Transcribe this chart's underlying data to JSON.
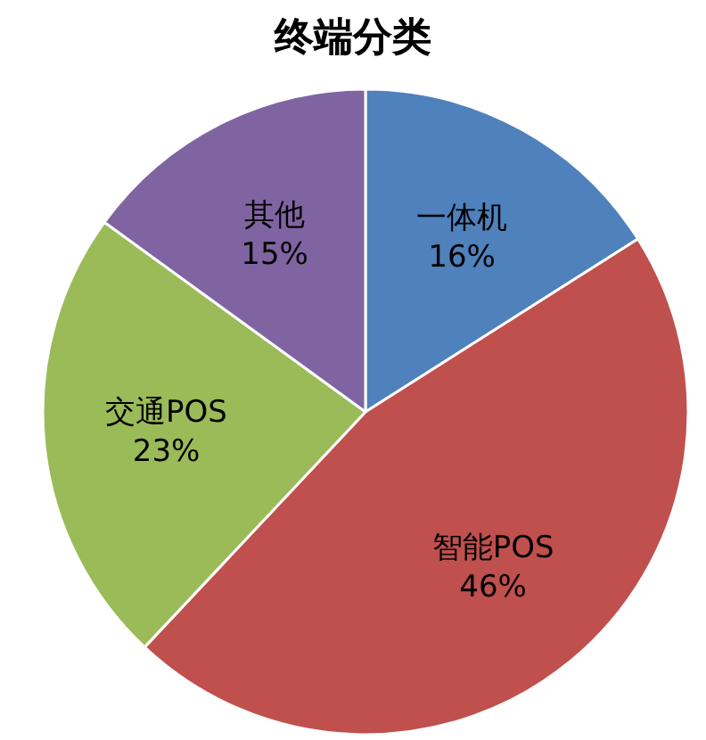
{
  "chart_data": {
    "type": "pie",
    "title": "终端分类",
    "categories": [
      "一体机",
      "智能POS",
      "交通POS",
      "其他"
    ],
    "values": [
      16,
      46,
      23,
      15
    ],
    "value_labels": [
      "16%",
      "46%",
      "23%",
      "15%"
    ],
    "colors": [
      "#4f81bd",
      "#c0504d",
      "#9bbb59",
      "#8064a2"
    ],
    "legend": false
  }
}
